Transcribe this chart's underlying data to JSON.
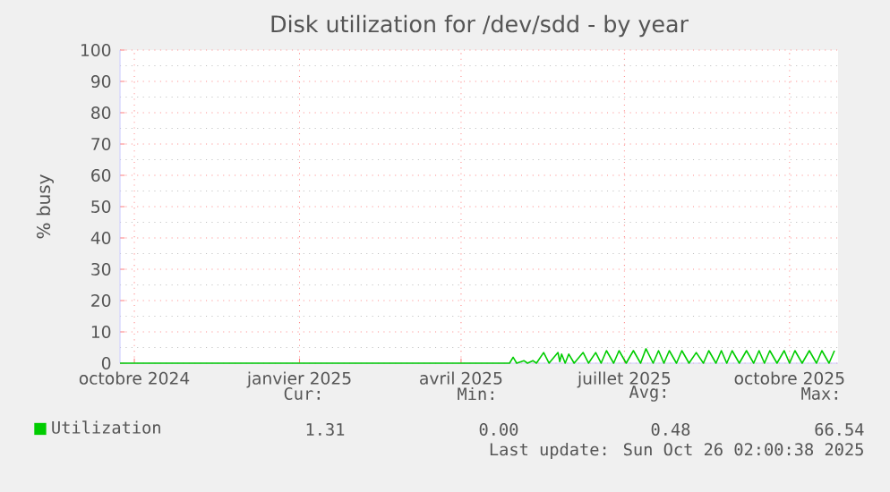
{
  "chart_data": {
    "type": "line",
    "title": "Disk utilization for /dev/sdd - by year",
    "ylabel": "% busy",
    "xlim": [
      "2024-09-23",
      "2025-10-28"
    ],
    "ylim": [
      0,
      100
    ],
    "xticks": [
      {
        "value": "2024-10-01",
        "label": "octobre 2024"
      },
      {
        "value": "2025-01-01",
        "label": "janvier 2025"
      },
      {
        "value": "2025-04-01",
        "label": "avril 2025"
      },
      {
        "value": "2025-07-01",
        "label": "juillet 2025"
      },
      {
        "value": "2025-10-01",
        "label": "octobre 2025"
      }
    ],
    "yticks": [
      0,
      10,
      20,
      30,
      40,
      50,
      60,
      70,
      80,
      90,
      100
    ],
    "grid": true,
    "legend": "bottom left",
    "series": [
      {
        "name": "Utilization",
        "color": "#00cc00",
        "x": [
          "2024-09-23",
          "2025-04-28",
          "2025-04-30",
          "2025-05-02",
          "2025-05-06",
          "2025-05-08",
          "2025-05-11",
          "2025-05-13",
          "2025-05-17",
          "2025-05-20",
          "2025-05-25",
          "2025-05-26",
          "2025-05-27",
          "2025-05-29",
          "2025-05-31",
          "2025-06-03",
          "2025-06-08",
          "2025-06-11",
          "2025-06-15",
          "2025-06-18",
          "2025-06-21",
          "2025-06-25",
          "2025-06-28",
          "2025-07-02",
          "2025-07-06",
          "2025-07-10",
          "2025-07-13",
          "2025-07-17",
          "2025-07-20",
          "2025-07-23",
          "2025-07-26",
          "2025-07-30",
          "2025-08-02",
          "2025-08-06",
          "2025-08-10",
          "2025-08-14",
          "2025-08-17",
          "2025-08-21",
          "2025-08-24",
          "2025-08-27",
          "2025-08-30",
          "2025-09-03",
          "2025-09-07",
          "2025-09-11",
          "2025-09-14",
          "2025-09-17",
          "2025-09-20",
          "2025-09-24",
          "2025-09-28",
          "2025-10-01",
          "2025-10-04",
          "2025-10-08",
          "2025-10-12",
          "2025-10-16",
          "2025-10-19",
          "2025-10-23",
          "2025-10-26"
        ],
        "values": [
          0,
          0,
          1.9,
          0,
          0.8,
          0,
          0.8,
          0,
          3.4,
          0,
          3.4,
          0.5,
          2.9,
          0,
          2.9,
          0,
          3.4,
          0,
          3.4,
          0,
          4,
          0,
          4,
          0,
          4,
          0,
          4.6,
          0,
          4,
          0,
          4,
          0,
          4,
          0,
          3.4,
          0,
          4,
          0,
          4,
          0,
          4,
          0,
          4,
          0,
          4,
          0,
          4,
          0,
          4,
          0,
          4,
          0,
          4,
          0,
          4,
          0,
          4
        ]
      }
    ],
    "annotations": [
      "Cur:",
      "Min:",
      "Avg:",
      "Max:",
      "1.31",
      "0.00",
      "0.48",
      "66.54",
      "Last update: Sun Oct 26 02:00:38 2025"
    ]
  }
}
